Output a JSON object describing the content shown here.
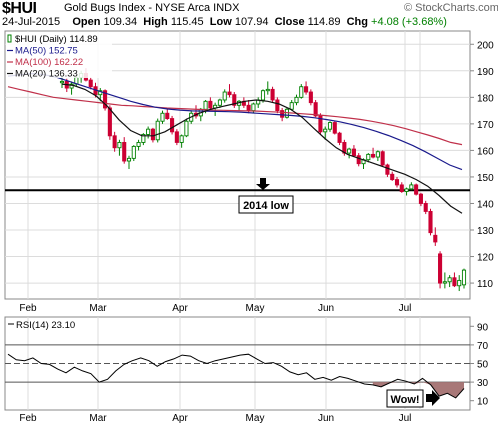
{
  "header": {
    "ticker": "$HUI",
    "title": "Gold Bugs Index - NYSE Arca INDX",
    "watermark": "© StockCharts.com",
    "date": "24-Jul-2015",
    "open_label": "Open",
    "open": "109.34",
    "high_label": "High",
    "high": "115.45",
    "low_label": "Low",
    "low": "107.94",
    "close_label": "Close",
    "close": "114.89",
    "chg_label": "Chg",
    "chg": "+4.08 (+3.68%)",
    "chg_color": "#008000"
  },
  "colors": {
    "up": "#008000",
    "down": "#cc0033",
    "ma50": "#1a1a8c",
    "ma100": "#c0304a",
    "ma20": "#111111",
    "rsi_fill": "#a87878",
    "grid": "#dcdcdc"
  },
  "chart_data": [
    {
      "type": "candlestick",
      "legend": [
        {
          "text": "$HUI (Daily) 114.89",
          "color": "#000000"
        },
        {
          "text": "MA(50) 152.75",
          "color": "#1a1a8c"
        },
        {
          "text": "MA(100) 162.22",
          "color": "#c0304a"
        },
        {
          "text": "MA(20) 136.33",
          "color": "#111111"
        }
      ],
      "yticks": [
        110,
        120,
        130,
        140,
        150,
        160,
        170,
        180,
        190,
        200
      ],
      "ylim": [
        104,
        205
      ],
      "months": [
        "Feb",
        "Mar",
        "Apr",
        "May",
        "Jun",
        "Jul"
      ],
      "grid": true,
      "support_line": 145,
      "annotation": "2014 low",
      "candles": [
        [
          185.5,
          188,
          183.5,
          186
        ],
        [
          186,
          187,
          182,
          183.5
        ],
        [
          183.5,
          186,
          181,
          185
        ],
        [
          185,
          188,
          184,
          187.5
        ],
        [
          187.5,
          190,
          185.5,
          189
        ],
        [
          189,
          191,
          186,
          186.5
        ],
        [
          186.5,
          187.5,
          183,
          184
        ],
        [
          184,
          185.5,
          180,
          181
        ],
        [
          181,
          183.5,
          178.5,
          182.5
        ],
        [
          182.5,
          183,
          175,
          176
        ],
        [
          176,
          177,
          164,
          165.5
        ],
        [
          165.5,
          167,
          159.5,
          161
        ],
        [
          161,
          164,
          158,
          163
        ],
        [
          163,
          165,
          155,
          156
        ],
        [
          156,
          158,
          153,
          157
        ],
        [
          157,
          162,
          156,
          161.5
        ],
        [
          161.5,
          164,
          160,
          163
        ],
        [
          163,
          166.5,
          162,
          166
        ],
        [
          166,
          169,
          164.5,
          168
        ],
        [
          168,
          168.5,
          163,
          164
        ],
        [
          164,
          172,
          163,
          171
        ],
        [
          171,
          175,
          170,
          174
        ],
        [
          174,
          176,
          171.5,
          172
        ],
        [
          172,
          173,
          166,
          167
        ],
        [
          167,
          168,
          162,
          163
        ],
        [
          163,
          166,
          161,
          165.5
        ],
        [
          165.5,
          172,
          165,
          171
        ],
        [
          171,
          175,
          170,
          174
        ],
        [
          174,
          177,
          172,
          173
        ],
        [
          173,
          176,
          171,
          175.5
        ],
        [
          175.5,
          179,
          174,
          178.5
        ],
        [
          178.5,
          180,
          175,
          176
        ],
        [
          176,
          178,
          173,
          177
        ],
        [
          177,
          179.5,
          176,
          179
        ],
        [
          179,
          183,
          178,
          182
        ],
        [
          182,
          185,
          180,
          181
        ],
        [
          181,
          182,
          176,
          177
        ],
        [
          177,
          179,
          175,
          178.5
        ],
        [
          178.5,
          180,
          176,
          177
        ],
        [
          177,
          179,
          174,
          175
        ],
        [
          175,
          178,
          174,
          177.5
        ],
        [
          177.5,
          180,
          176,
          179
        ],
        [
          179,
          183,
          178,
          182.5
        ],
        [
          182.5,
          186,
          181,
          183
        ],
        [
          183,
          184,
          178,
          179
        ],
        [
          179,
          180,
          174,
          175
        ],
        [
          175,
          176,
          171,
          172.5
        ],
        [
          172.5,
          176,
          172,
          175.5
        ],
        [
          175.5,
          179,
          175,
          178
        ],
        [
          178,
          181,
          177,
          180
        ],
        [
          180,
          185,
          179.5,
          184
        ],
        [
          184,
          186,
          181,
          182
        ],
        [
          182,
          183,
          177,
          178
        ],
        [
          178,
          179,
          172.5,
          173
        ],
        [
          173,
          174,
          166,
          167
        ],
        [
          167,
          169,
          164,
          168
        ],
        [
          168,
          171,
          167,
          170.5
        ],
        [
          170.5,
          171,
          166,
          166.5
        ],
        [
          166.5,
          167,
          162,
          163
        ],
        [
          163,
          164,
          158,
          159
        ],
        [
          159,
          161,
          157,
          160.5
        ],
        [
          160.5,
          162,
          157.5,
          158
        ],
        [
          158,
          159,
          154,
          155
        ],
        [
          155,
          157,
          153,
          156.5
        ],
        [
          156.5,
          159,
          155.5,
          158.5
        ],
        [
          158.5,
          161,
          157,
          157.5
        ],
        [
          157.5,
          160,
          156,
          159.5
        ],
        [
          159.5,
          160,
          154,
          154.5
        ],
        [
          154.5,
          155,
          150,
          151
        ],
        [
          151,
          152,
          148.5,
          149
        ],
        [
          149,
          150,
          146,
          147
        ],
        [
          147,
          148,
          144,
          144.5
        ],
        [
          144.5,
          146,
          143,
          145.5
        ],
        [
          145.5,
          148,
          145,
          147
        ],
        [
          147,
          147.5,
          143,
          143.5
        ],
        [
          143.5,
          144,
          139,
          140
        ],
        [
          140,
          141,
          136,
          137
        ],
        [
          137,
          138,
          128,
          129
        ],
        [
          128,
          131,
          124,
          125.5
        ],
        [
          121,
          122,
          108,
          110
        ],
        [
          110,
          114,
          108,
          110.5
        ],
        [
          110.5,
          113,
          108.5,
          112
        ],
        [
          112,
          114,
          108.5,
          109
        ],
        [
          109,
          113,
          107,
          111
        ],
        [
          109.34,
          115.45,
          107.94,
          114.89
        ]
      ],
      "series": [
        {
          "name": "MA(100)",
          "values": [
            184,
            183,
            182,
            181,
            180,
            179.5,
            179,
            178.5,
            178,
            177.5,
            177,
            176.8,
            176.5,
            176.3,
            176,
            175.8,
            175.6,
            175.4,
            175.2,
            175.1,
            175,
            174.9,
            174.8,
            174.6,
            174.4,
            174.1,
            173.8,
            173.5,
            173.1,
            172.7,
            172.2,
            171.7,
            171,
            170.2,
            169.3,
            168.2,
            167,
            165.8,
            164.5,
            163,
            162.2
          ]
        },
        {
          "name": "MA(50)",
          "values": [
            188,
            188.5,
            189,
            188.5,
            187.5,
            186,
            184.5,
            183,
            181.5,
            180,
            178.5,
            177.3,
            176.3,
            175.6,
            175.2,
            174.9,
            174.8,
            174.7,
            174.6,
            174.4,
            174.1,
            173.8,
            173.5,
            173.2,
            172.8,
            172.3,
            171.6,
            170.8,
            169.8,
            168.6,
            167.2,
            165.6,
            163.8,
            161.8,
            159.5,
            157,
            154.5,
            152.75
          ]
        },
        {
          "name": "MA(20)",
          "values": [
            185,
            184.5,
            183,
            180.5,
            176.5,
            171.5,
            167.5,
            165.5,
            165.5,
            167,
            169.5,
            172,
            174,
            175.5,
            176.5,
            177.5,
            178.5,
            179,
            178.5,
            177.5,
            175.5,
            172.5,
            168.5,
            164.5,
            161,
            158.5,
            157,
            155.5,
            154,
            152.5,
            151,
            149,
            146.5,
            143,
            139,
            136.33
          ]
        }
      ]
    },
    {
      "type": "line",
      "legend": [
        {
          "text": "RSI(14) 23.10",
          "color": "#000000"
        }
      ],
      "yticks": [
        10,
        30,
        50,
        70,
        90
      ],
      "ylim": [
        0,
        100
      ],
      "levels": [
        30,
        50,
        70
      ],
      "annotation": "Wow!",
      "series": [
        {
          "name": "RSI(14)",
          "values": [
            60,
            54,
            53,
            56,
            50,
            49,
            44,
            40,
            46,
            42,
            39,
            30,
            33,
            42,
            49,
            53,
            56,
            53,
            47,
            52,
            55,
            59,
            58,
            53,
            50,
            53,
            55,
            57,
            59,
            60,
            55,
            50,
            51,
            47,
            41,
            38,
            40,
            33,
            35,
            32,
            36,
            34,
            31,
            28,
            27,
            25,
            29,
            33,
            31,
            28,
            34,
            27,
            15,
            18,
            13,
            23.1
          ]
        }
      ]
    }
  ]
}
